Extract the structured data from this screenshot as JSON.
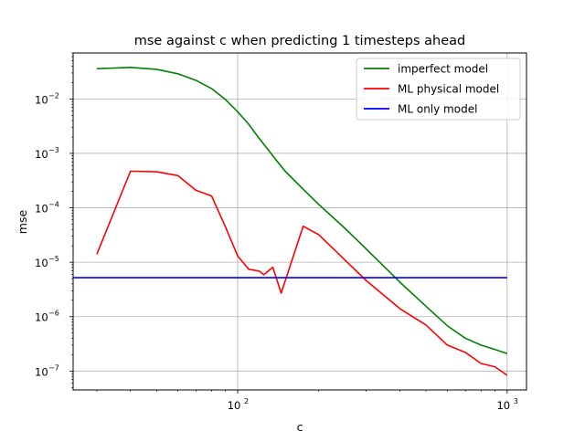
{
  "chart_data": {
    "type": "line",
    "title": "mse against c when predicting 1 timesteps ahead",
    "xlabel": "c",
    "ylabel": "mse",
    "xscale": "log",
    "yscale": "log",
    "xlim": [
      24.5,
      1180
    ],
    "ylim": [
      4.5e-08,
      0.07
    ],
    "grid": true,
    "legend_position": "top-right",
    "x_ticks": [
      {
        "value": 100,
        "base": "10",
        "exp": "2"
      },
      {
        "value": 1000,
        "base": "10",
        "exp": "3"
      }
    ],
    "y_ticks": [
      {
        "value": 1e-07,
        "base": "10",
        "exp": "−7"
      },
      {
        "value": 1e-06,
        "base": "10",
        "exp": "−6"
      },
      {
        "value": 1e-05,
        "base": "10",
        "exp": "−5"
      },
      {
        "value": 0.0001,
        "base": "10",
        "exp": "−4"
      },
      {
        "value": 0.001,
        "base": "10",
        "exp": "−3"
      },
      {
        "value": 0.01,
        "base": "10",
        "exp": "−2"
      }
    ],
    "series": [
      {
        "name": "imperfect model",
        "color": "#008000",
        "x": [
          30,
          40,
          50,
          60,
          70,
          80,
          90,
          100,
          110,
          120,
          130,
          140,
          150,
          175,
          200,
          250,
          300,
          400,
          500,
          600,
          700,
          800,
          900,
          1000
        ],
        "y": [
          0.036,
          0.038,
          0.035,
          0.029,
          0.022,
          0.0155,
          0.0098,
          0.0058,
          0.0034,
          0.0019,
          0.00115,
          0.00072,
          0.00047,
          0.00022,
          0.000115,
          4.2e-05,
          1.75e-05,
          4.3e-06,
          1.55e-06,
          6.8e-07,
          4e-07,
          3e-07,
          2.5e-07,
          2.1e-07
        ]
      },
      {
        "name": "ML physical model",
        "color": "#ff0000",
        "x": [
          30,
          40,
          50,
          60,
          70,
          80,
          90,
          100,
          110,
          120,
          125,
          135,
          145,
          175,
          200,
          250,
          300,
          400,
          500,
          600,
          700,
          800,
          900,
          1000
        ],
        "y": [
          1.4e-05,
          0.00047,
          0.00046,
          0.00039,
          0.00021,
          0.000165,
          4.5e-05,
          1.3e-05,
          7.4e-06,
          6.9e-06,
          5.9e-06,
          8.1e-06,
          2.7e-06,
          4.6e-05,
          3.2e-05,
          1.1e-05,
          4.6e-06,
          1.4e-06,
          7e-07,
          3e-07,
          2.2e-07,
          1.38e-07,
          1.2e-07,
          8.4e-08
        ]
      },
      {
        "name": "ML only model",
        "color": "#0000ff",
        "x": [
          24.5,
          1000
        ],
        "y": [
          5.2e-06,
          5.2e-06
        ]
      }
    ]
  }
}
